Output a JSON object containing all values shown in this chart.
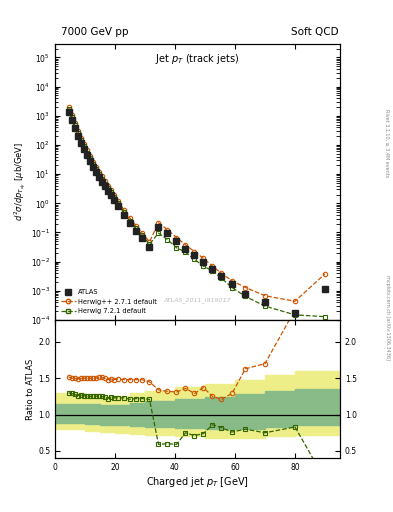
{
  "title_left": "7000 GeV pp",
  "title_right": "Soft QCD",
  "plot_title": "Jet p$_T$ (track jets)",
  "xlabel": "Charged jet p$_T$ [GeV]",
  "ylabel_main": "d$^2\\sigma$/dp$_{T_{dy}}$ [$\\mu$b/GeV]",
  "ylabel_ratio": "Ratio to ATLAS",
  "watermark": "ATLAS_2011_I919017",
  "right_label_top": "Rivet 3.1.10, ≥ 3.4M events",
  "right_label_bot": "mcplots.cern.ch [arXiv:1306.3436]",
  "atlas_x": [
    4.5,
    5.5,
    6.5,
    7.5,
    8.5,
    9.5,
    10.5,
    11.5,
    12.5,
    13.5,
    14.5,
    15.5,
    16.5,
    17.5,
    18.5,
    19.5,
    21.0,
    23.0,
    25.0,
    27.0,
    29.0,
    31.5,
    34.5,
    37.5,
    40.5,
    43.5,
    46.5,
    49.5,
    52.5,
    55.5,
    59.0,
    63.5,
    70.0,
    80.0,
    90.0
  ],
  "atlas_y": [
    1300,
    700,
    380,
    210,
    120,
    72,
    44,
    28,
    18,
    12,
    8.0,
    5.5,
    3.8,
    2.7,
    1.9,
    1.35,
    0.82,
    0.4,
    0.21,
    0.115,
    0.065,
    0.033,
    0.16,
    0.095,
    0.051,
    0.028,
    0.017,
    0.0095,
    0.0056,
    0.0033,
    0.0017,
    0.0008,
    0.0004,
    0.00018,
    0.0012
  ],
  "hw271_x": [
    4.5,
    5.5,
    6.5,
    7.5,
    8.5,
    9.5,
    10.5,
    11.5,
    12.5,
    13.5,
    14.5,
    15.5,
    16.5,
    17.5,
    18.5,
    19.5,
    21.0,
    23.0,
    25.0,
    27.0,
    29.0,
    31.5,
    34.5,
    37.5,
    40.5,
    43.5,
    46.5,
    49.5,
    52.5,
    55.5,
    59.0,
    63.5,
    70.0,
    80.0,
    90.0
  ],
  "hw271_y": [
    1980,
    1050,
    570,
    312,
    180,
    108,
    66,
    42,
    27,
    18,
    12.1,
    8.3,
    5.7,
    4.0,
    2.83,
    2.0,
    1.22,
    0.59,
    0.31,
    0.17,
    0.096,
    0.048,
    0.215,
    0.125,
    0.067,
    0.038,
    0.022,
    0.013,
    0.007,
    0.004,
    0.0022,
    0.0013,
    0.00068,
    0.00044,
    0.0038
  ],
  "hw721_x": [
    4.5,
    5.5,
    6.5,
    7.5,
    8.5,
    9.5,
    10.5,
    11.5,
    12.5,
    13.5,
    14.5,
    15.5,
    16.5,
    17.5,
    18.5,
    19.5,
    21.0,
    23.0,
    25.0,
    27.0,
    29.0,
    31.5,
    34.5,
    37.5,
    40.5,
    43.5,
    46.5,
    49.5,
    52.5,
    55.5,
    59.0,
    63.5,
    70.0,
    80.0,
    90.0
  ],
  "hw721_y": [
    1690,
    900,
    485,
    265,
    152,
    91,
    55,
    35,
    22.5,
    15.0,
    10.1,
    6.9,
    4.7,
    3.3,
    2.35,
    1.66,
    1.01,
    0.49,
    0.255,
    0.14,
    0.079,
    0.04,
    0.095,
    0.057,
    0.03,
    0.021,
    0.012,
    0.007,
    0.0048,
    0.0027,
    0.0013,
    0.00064,
    0.0003,
    0.00015,
    0.00013
  ],
  "ratio_hw271_x": [
    4.5,
    5.5,
    6.5,
    7.5,
    8.5,
    9.5,
    10.5,
    11.5,
    12.5,
    13.5,
    14.5,
    15.5,
    16.5,
    17.5,
    18.5,
    19.5,
    21.0,
    23.0,
    25.0,
    27.0,
    29.0,
    31.5,
    34.5,
    37.5,
    40.5,
    43.5,
    46.5,
    49.5,
    52.5,
    55.5,
    59.0,
    63.5,
    70.0,
    80.0,
    90.0
  ],
  "ratio_hw271_y": [
    1.52,
    1.5,
    1.5,
    1.49,
    1.5,
    1.5,
    1.5,
    1.5,
    1.5,
    1.5,
    1.51,
    1.51,
    1.5,
    1.48,
    1.49,
    1.48,
    1.49,
    1.48,
    1.48,
    1.48,
    1.48,
    1.45,
    1.34,
    1.32,
    1.31,
    1.36,
    1.29,
    1.37,
    1.25,
    1.21,
    1.29,
    1.63,
    1.7,
    2.44,
    3.17
  ],
  "ratio_hw721_x": [
    4.5,
    5.5,
    6.5,
    7.5,
    8.5,
    9.5,
    10.5,
    11.5,
    12.5,
    13.5,
    14.5,
    15.5,
    16.5,
    17.5,
    18.5,
    19.5,
    21.0,
    23.0,
    25.0,
    27.0,
    29.0,
    31.5,
    34.5,
    37.5,
    40.5,
    43.5,
    46.5,
    49.5,
    52.5,
    55.5,
    59.0,
    63.5,
    70.0,
    80.0,
    90.0
  ],
  "ratio_hw721_y": [
    1.3,
    1.29,
    1.28,
    1.26,
    1.27,
    1.26,
    1.25,
    1.25,
    1.25,
    1.25,
    1.26,
    1.25,
    1.24,
    1.22,
    1.24,
    1.23,
    1.23,
    1.23,
    1.21,
    1.22,
    1.22,
    1.21,
    0.59,
    0.6,
    0.59,
    0.75,
    0.71,
    0.74,
    0.86,
    0.82,
    0.76,
    0.8,
    0.75,
    0.83,
    0.11
  ],
  "band_yellow_edges": [
    0,
    5,
    10,
    15,
    20,
    25,
    30,
    40,
    50,
    60,
    70,
    80,
    95
  ],
  "band_yellow_lo": [
    0.8,
    0.8,
    0.78,
    0.76,
    0.75,
    0.74,
    0.72,
    0.7,
    0.68,
    0.68,
    0.7,
    0.72,
    0.72
  ],
  "band_yellow_hi": [
    1.3,
    1.3,
    1.28,
    1.26,
    1.25,
    1.3,
    1.33,
    1.38,
    1.42,
    1.48,
    1.55,
    1.6,
    1.65
  ],
  "band_green_edges": [
    0,
    5,
    10,
    15,
    20,
    25,
    30,
    40,
    50,
    60,
    70,
    80,
    95
  ],
  "band_green_lo": [
    0.88,
    0.88,
    0.87,
    0.86,
    0.85,
    0.84,
    0.83,
    0.81,
    0.8,
    0.8,
    0.83,
    0.85,
    0.85
  ],
  "band_green_hi": [
    1.15,
    1.15,
    1.14,
    1.13,
    1.13,
    1.16,
    1.18,
    1.22,
    1.24,
    1.28,
    1.32,
    1.35,
    1.38
  ],
  "atlas_color": "#222222",
  "hw271_color": "#cc5500",
  "hw721_color": "#336600",
  "band_yellow_color": "#eeee88",
  "band_green_color": "#88bb88",
  "xlim": [
    0,
    95
  ],
  "ylim_main": [
    0.0001,
    300000.0
  ],
  "ylim_ratio": [
    0.4,
    2.3
  ],
  "ratio_yticks": [
    0.5,
    1.0,
    1.5,
    2.0
  ]
}
